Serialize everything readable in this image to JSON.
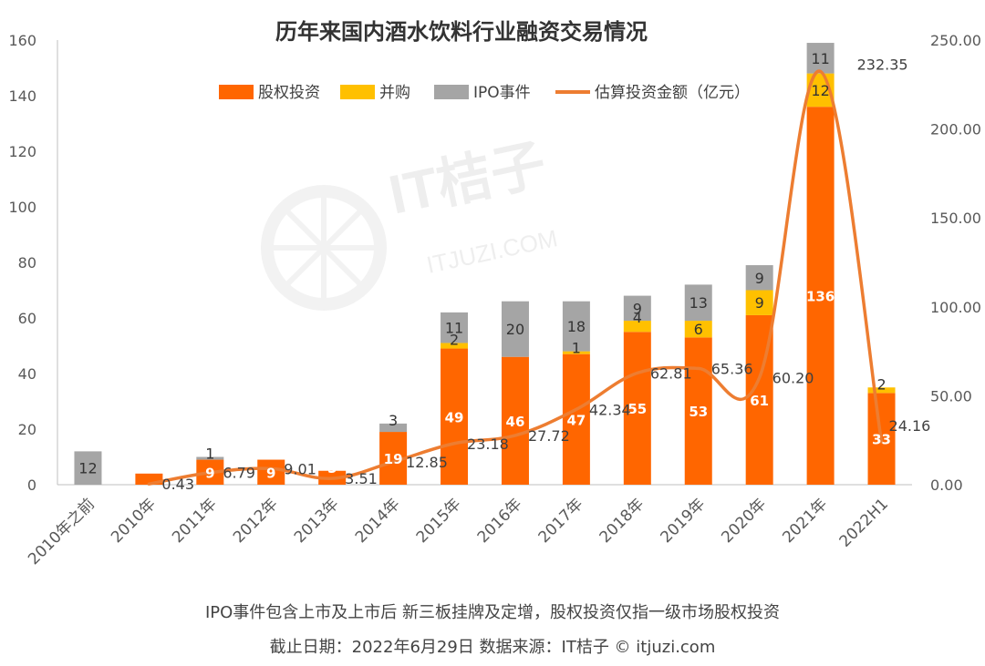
{
  "chart_data": {
    "type": "bar",
    "title": "历年来国内酒水饮料行业融资交易情况",
    "categories": [
      "2010年之前",
      "2010年",
      "2011年",
      "2012年",
      "2013年",
      "2014年",
      "2015年",
      "2016年",
      "2017年",
      "2018年",
      "2019年",
      "2020年",
      "2021年",
      "2022H1"
    ],
    "series": [
      {
        "name": "股权投资",
        "kind": "bar",
        "axis": "left",
        "color": "#FF6600",
        "values": [
          0,
          4,
          9,
          9,
          5,
          19,
          49,
          46,
          47,
          55,
          53,
          61,
          136,
          33
        ],
        "labels": [
          "",
          "",
          "9",
          "9",
          "5",
          "19",
          "49",
          "46",
          "47",
          "55",
          "53",
          "61",
          "136",
          "33"
        ]
      },
      {
        "name": "并购",
        "kind": "bar",
        "axis": "left",
        "color": "#FFC000",
        "values": [
          0,
          0,
          0,
          0,
          0,
          0,
          2,
          0,
          1,
          4,
          6,
          9,
          12,
          2
        ],
        "labels": [
          "",
          "",
          "",
          "",
          "",
          "",
          "2",
          "",
          "1",
          "4",
          "6",
          "9",
          "12",
          "2"
        ]
      },
      {
        "name": "IPO事件",
        "kind": "bar",
        "axis": "left",
        "color": "#A5A5A5",
        "values": [
          12,
          0,
          1,
          0,
          0,
          3,
          11,
          20,
          18,
          9,
          13,
          9,
          11,
          0
        ],
        "labels": [
          "12",
          "",
          "1",
          "",
          "",
          "3",
          "11",
          "20",
          "18",
          "9",
          "13",
          "9",
          "11",
          ""
        ]
      },
      {
        "name": "估算投资金额（亿元）",
        "kind": "line",
        "axis": "right",
        "color": "#ED7D31",
        "values": [
          null,
          0.43,
          6.79,
          9.01,
          3.51,
          12.85,
          23.18,
          27.72,
          42.34,
          62.81,
          65.36,
          60.2,
          232.35,
          24.16
        ],
        "labels": [
          "",
          "0.43",
          "6.79",
          "9.01",
          "3.51",
          "12.85",
          "23.18",
          "27.72",
          "42.34",
          "62.81",
          "65.36",
          "60.20",
          "232.35",
          "24.16"
        ]
      }
    ],
    "y_left": {
      "range": [
        0,
        160
      ],
      "ticks": [
        "0",
        "20",
        "40",
        "60",
        "80",
        "100",
        "120",
        "140",
        "160"
      ]
    },
    "y_right": {
      "range": [
        0,
        250
      ],
      "ticks": [
        "0.00",
        "50.00",
        "100.00",
        "150.00",
        "200.00",
        "250.00"
      ]
    },
    "grid": false,
    "legend_position": "top"
  },
  "watermark": {
    "brand": "IT桔子",
    "domain": "ITJUZI.COM"
  },
  "footnote": {
    "line1": "IPO事件包含上市及上市后  新三板挂牌及定增，股权投资仅指一级市场股权投资",
    "line2": "截止日期：2022年6月29日     数据来源：IT桔子 © itjuzi.com"
  },
  "colors": {
    "axis": "#BFBFBF",
    "tick_text": "#595959",
    "title": "#333333"
  }
}
